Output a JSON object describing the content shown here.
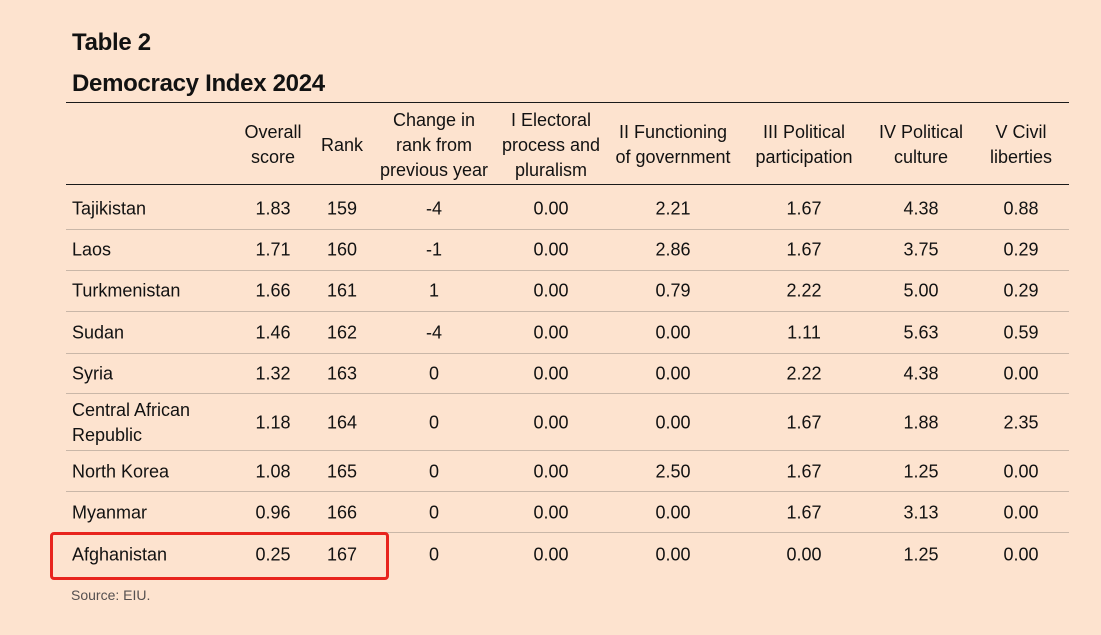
{
  "header": {
    "label": "Table 2",
    "title": "Democracy Index 2024"
  },
  "table": {
    "columns": [
      "Overall\nscore",
      "Rank",
      "Change in\nrank from\nprevious year",
      "I Electoral\nprocess and\npluralism",
      "II Functioning\nof government",
      "III Political\nparticipation",
      "IV Political\nculture",
      "V Civil\nliberties"
    ],
    "rows": [
      {
        "country": "Tajikistan",
        "values": [
          "1.83",
          "159",
          "-4",
          "0.00",
          "2.21",
          "1.67",
          "4.38",
          "0.88"
        ]
      },
      {
        "country": "Laos",
        "values": [
          "1.71",
          "160",
          "-1",
          "0.00",
          "2.86",
          "1.67",
          "3.75",
          "0.29"
        ]
      },
      {
        "country": "Turkmenistan",
        "values": [
          "1.66",
          "161",
          "1",
          "0.00",
          "0.79",
          "2.22",
          "5.00",
          "0.29"
        ]
      },
      {
        "country": "Sudan",
        "values": [
          "1.46",
          "162",
          "-4",
          "0.00",
          "0.00",
          "1.11",
          "5.63",
          "0.59"
        ]
      },
      {
        "country": "Syria",
        "values": [
          "1.32",
          "163",
          "0",
          "0.00",
          "0.00",
          "2.22",
          "4.38",
          "0.00"
        ]
      },
      {
        "country": "Central African\nRepublic",
        "values": [
          "1.18",
          "164",
          "0",
          "0.00",
          "0.00",
          "1.67",
          "1.88",
          "2.35"
        ]
      },
      {
        "country": "North Korea",
        "values": [
          "1.08",
          "165",
          "0",
          "0.00",
          "2.50",
          "1.67",
          "1.25",
          "0.00"
        ]
      },
      {
        "country": "Myanmar",
        "values": [
          "0.96",
          "166",
          "0",
          "0.00",
          "0.00",
          "1.67",
          "3.13",
          "0.00"
        ]
      },
      {
        "country": "Afghanistan",
        "values": [
          "0.25",
          "167",
          "0",
          "0.00",
          "0.00",
          "0.00",
          "1.25",
          "0.00"
        ]
      }
    ]
  },
  "highlight_color": "#e8241d",
  "footer": {
    "source": "Source: EIU."
  }
}
